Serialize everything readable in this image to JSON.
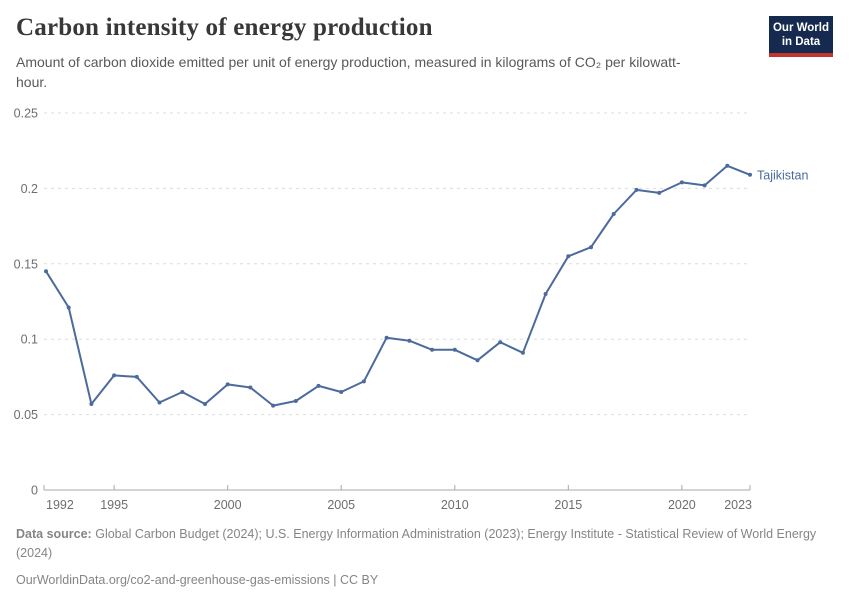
{
  "header": {
    "title": "Carbon intensity of energy production",
    "subtitle": "Amount of carbon dioxide emitted per unit of energy production, measured in kilograms of CO₂ per kilowatt-hour.",
    "logo": {
      "line1": "Our World",
      "line2": "in Data",
      "bg_color": "#152A4E",
      "accent_color": "#C0362C"
    }
  },
  "chart_data": {
    "type": "line",
    "title": "Carbon intensity of energy production",
    "xlabel": "",
    "ylabel": "kilograms of CO₂ per kilowatt-hour",
    "xlim": [
      1992,
      2023
    ],
    "ylim": [
      0,
      0.25
    ],
    "yticks": [
      0,
      0.05,
      0.1,
      0.15,
      0.2,
      0.25
    ],
    "ytick_labels": [
      "0",
      "0.05",
      "0.1",
      "0.15",
      "0.2",
      "0.25"
    ],
    "xticks": [
      1992,
      1995,
      2000,
      2005,
      2010,
      2015,
      2020,
      2023
    ],
    "grid": "horizontal-dashed",
    "legend_position": "end-of-line-label",
    "series": [
      {
        "name": "Tajikistan",
        "color": "#4C6A9C",
        "x": [
          1992,
          1993,
          1994,
          1995,
          1996,
          1997,
          1998,
          1999,
          2000,
          2001,
          2002,
          2003,
          2004,
          2005,
          2006,
          2007,
          2008,
          2009,
          2010,
          2011,
          2012,
          2013,
          2014,
          2015,
          2016,
          2017,
          2018,
          2019,
          2020,
          2021,
          2022,
          2023
        ],
        "values": [
          0.145,
          0.121,
          0.057,
          0.076,
          0.075,
          0.058,
          0.065,
          0.057,
          0.07,
          0.068,
          0.056,
          0.059,
          0.069,
          0.065,
          0.072,
          0.101,
          0.099,
          0.093,
          0.093,
          0.086,
          0.098,
          0.091,
          0.13,
          0.155,
          0.161,
          0.183,
          0.199,
          0.197,
          0.204,
          0.202,
          0.215,
          0.209
        ]
      }
    ]
  },
  "footer": {
    "source_label": "Data source:",
    "sources": "Global Carbon Budget (2024); U.S. Energy Information Administration (2023); Energy Institute - Statistical Review of World Energy (2024)",
    "url_line": "OurWorldinData.org/co2-and-greenhouse-gas-emissions | CC BY"
  }
}
